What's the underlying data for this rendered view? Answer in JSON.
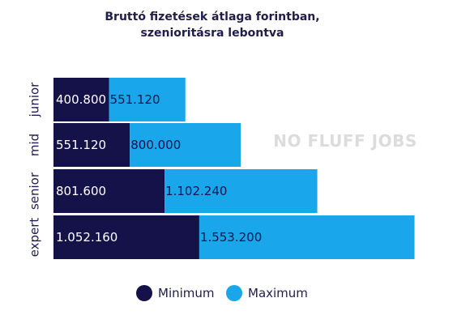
{
  "watermark": "NO FLUFF JOBS",
  "chart_data": {
    "type": "bar",
    "orientation": "horizontal",
    "stacked": true,
    "title": [
      "Bruttó fizetések átlaga forintban,",
      "szenioritásra lebontva"
    ],
    "categories": [
      "junior",
      "mid",
      "senior",
      "expert"
    ],
    "series": [
      {
        "name": "Minimum",
        "color": "#15124a",
        "values": [
          400800,
          551120,
          801600,
          1052160
        ],
        "labels": [
          "400.800",
          "551.120",
          "801.600",
          "1.052.160"
        ],
        "label_color": "#ffffff"
      },
      {
        "name": "Maximum",
        "color": "#1aa6ea",
        "values": [
          551120,
          800000,
          1102240,
          1553200
        ],
        "labels": [
          "551.120",
          "800.000",
          "1.102.240",
          "1.553.200"
        ],
        "label_color": "#15124a"
      }
    ],
    "legend_position": "bottom",
    "grid": false
  }
}
